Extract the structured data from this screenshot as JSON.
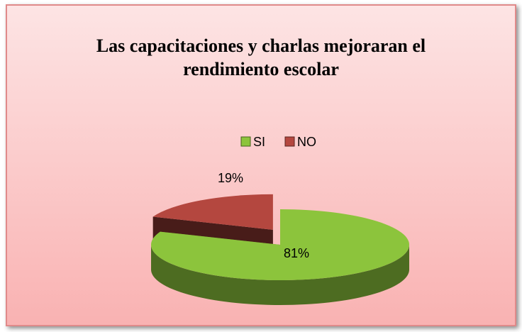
{
  "chart_data": {
    "type": "pie3d",
    "title": "Las capacitaciones y charlas mejoraran el rendimiento escolar",
    "categories": [
      "SI",
      "NO"
    ],
    "values": [
      81,
      19
    ],
    "value_labels": [
      "81%",
      "19%"
    ],
    "colors": [
      "#8cc43c",
      "#b4473f"
    ],
    "legend": "top"
  }
}
